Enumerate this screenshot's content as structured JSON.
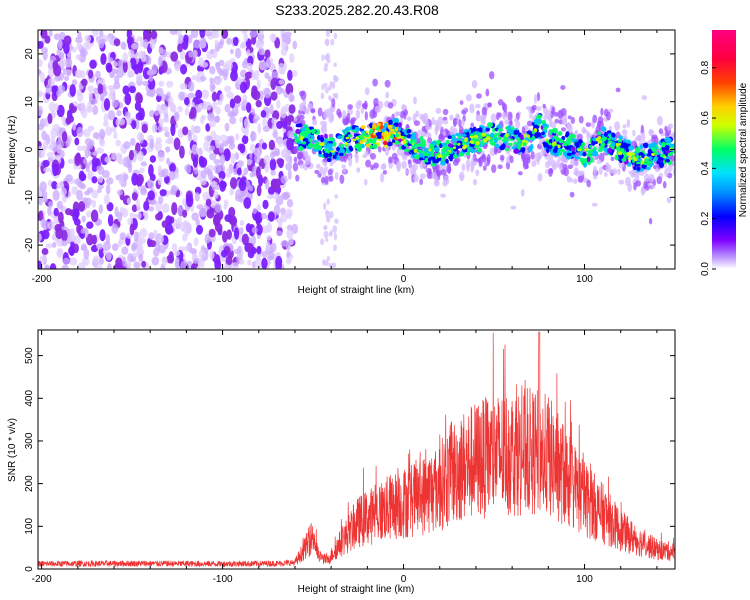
{
  "title": "S233.2025.282.20.43.R08",
  "chart_data": [
    {
      "type": "heatmap",
      "name": "spectrogram",
      "xlabel": "Height of straight line (km)",
      "ylabel": "Frequency (Hz)",
      "xlim": [
        -202,
        150
      ],
      "ylim": [
        -25,
        25
      ],
      "xticks": [
        "-200",
        "-100",
        "0",
        "100"
      ],
      "yticks": [
        "20",
        "10",
        "0",
        "-10",
        "-20"
      ],
      "xtick_values": [
        -200,
        -100,
        0,
        100
      ],
      "ytick_values": [
        20,
        10,
        0,
        -10,
        -20
      ],
      "noise_region": [
        -202,
        -60
      ],
      "noise_strip": [
        -45,
        -37
      ],
      "signal_region": [
        -60,
        150
      ],
      "signal_center_hz": [
        [
          -60,
          3
        ],
        [
          -50,
          2
        ],
        [
          -40,
          0
        ],
        [
          -30,
          2
        ],
        [
          -20,
          3
        ],
        [
          -10,
          3
        ],
        [
          -5,
          4
        ],
        [
          0,
          2
        ],
        [
          10,
          0
        ],
        [
          20,
          -1
        ],
        [
          30,
          1
        ],
        [
          40,
          2
        ],
        [
          50,
          3
        ],
        [
          60,
          2
        ],
        [
          70,
          2
        ],
        [
          75,
          5
        ],
        [
          80,
          2
        ],
        [
          90,
          1
        ],
        [
          100,
          -1
        ],
        [
          110,
          2
        ],
        [
          120,
          0
        ],
        [
          130,
          -2
        ],
        [
          140,
          -1
        ],
        [
          150,
          0
        ]
      ],
      "colorbar": {
        "label": "Normalized spectral amplitude",
        "range": [
          0,
          0.95
        ],
        "ticks": [
          "0.0",
          "0.2",
          "0.4",
          "0.6",
          "0.8"
        ],
        "tick_values": [
          0.0,
          0.2,
          0.4,
          0.6,
          0.8
        ],
        "colors": [
          "#ffffff",
          "#7f00ff",
          "#0000ff",
          "#00bfff",
          "#00ff66",
          "#ccff00",
          "#ffd000",
          "#ff4000",
          "#ff0040",
          "#ff0080"
        ]
      }
    },
    {
      "type": "line",
      "name": "snr",
      "xlabel": "Height of straight line (km)",
      "ylabel": "SNR (10 * v/v)",
      "xlim": [
        -202,
        150
      ],
      "ylim": [
        0,
        560
      ],
      "xticks": [
        "-200",
        "-100",
        "0",
        "100"
      ],
      "yticks": [
        "0",
        "100",
        "200",
        "300",
        "400",
        "500"
      ],
      "xtick_values": [
        -200,
        -100,
        0,
        100
      ],
      "ytick_values": [
        0,
        100,
        200,
        300,
        400,
        500
      ],
      "color": "#ee3333",
      "envelope": [
        [
          -202,
          12
        ],
        [
          -150,
          13
        ],
        [
          -100,
          12
        ],
        [
          -70,
          13
        ],
        [
          -60,
          15
        ],
        [
          -55,
          45
        ],
        [
          -50,
          80
        ],
        [
          -47,
          30
        ],
        [
          -42,
          20
        ],
        [
          -35,
          60
        ],
        [
          -25,
          110
        ],
        [
          -10,
          140
        ],
        [
          0,
          155
        ],
        [
          10,
          170
        ],
        [
          20,
          195
        ],
        [
          30,
          235
        ],
        [
          40,
          255
        ],
        [
          50,
          265
        ],
        [
          60,
          275
        ],
        [
          70,
          275
        ],
        [
          80,
          265
        ],
        [
          90,
          215
        ],
        [
          100,
          165
        ],
        [
          110,
          130
        ],
        [
          120,
          90
        ],
        [
          130,
          65
        ],
        [
          140,
          45
        ],
        [
          150,
          40
        ]
      ],
      "peak": [
        75,
        555
      ]
    }
  ]
}
